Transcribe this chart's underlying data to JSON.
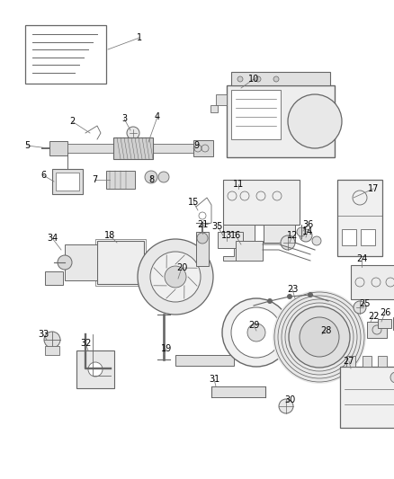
{
  "bg_color": "#ffffff",
  "line_color": "#666666",
  "label_color": "#000000",
  "fig_width": 4.38,
  "fig_height": 5.33,
  "dpi": 100
}
